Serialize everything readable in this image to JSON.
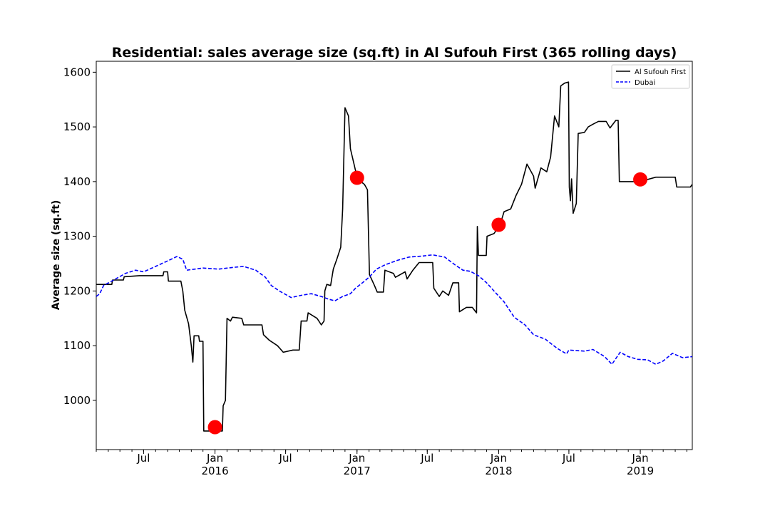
{
  "chart_data": {
    "type": "line",
    "title": "Residential: sales average size (sq.ft) in Al Sufouh First (365 rolling days)",
    "xlabel": "",
    "ylabel": "Average size (sq.ft)",
    "xlim": [
      "2015-03-01",
      "2019-05-15"
    ],
    "ylim": [
      910,
      1620
    ],
    "y_ticks": [
      1000,
      1100,
      1200,
      1300,
      1400,
      1500,
      1600
    ],
    "x_ticks": [
      {
        "date": "2015-07-01",
        "label": "Jul",
        "year": ""
      },
      {
        "date": "2016-01-01",
        "label": "Jan",
        "year": "2016"
      },
      {
        "date": "2016-07-01",
        "label": "Jul",
        "year": ""
      },
      {
        "date": "2017-01-01",
        "label": "Jan",
        "year": "2017"
      },
      {
        "date": "2017-07-01",
        "label": "Jul",
        "year": ""
      },
      {
        "date": "2018-01-01",
        "label": "Jan",
        "year": "2018"
      },
      {
        "date": "2018-07-01",
        "label": "Jul",
        "year": ""
      },
      {
        "date": "2019-01-01",
        "label": "Jan",
        "year": "2019"
      }
    ],
    "grid": false,
    "legend_position": "top-right",
    "series": [
      {
        "name": "Al Sufouh First",
        "color": "#000000",
        "style": "solid",
        "points": [
          [
            "2015-03-01",
            1212
          ],
          [
            "2015-04-10",
            1212
          ],
          [
            "2015-04-12",
            1220
          ],
          [
            "2015-05-10",
            1220
          ],
          [
            "2015-05-12",
            1226
          ],
          [
            "2015-06-20",
            1228
          ],
          [
            "2015-08-20",
            1228
          ],
          [
            "2015-08-22",
            1235
          ],
          [
            "2015-09-01",
            1235
          ],
          [
            "2015-09-03",
            1218
          ],
          [
            "2015-10-05",
            1218
          ],
          [
            "2015-10-10",
            1200
          ],
          [
            "2015-10-15",
            1165
          ],
          [
            "2015-10-25",
            1140
          ],
          [
            "2015-11-01",
            1100
          ],
          [
            "2015-11-05",
            1070
          ],
          [
            "2015-11-08",
            1118
          ],
          [
            "2015-11-20",
            1118
          ],
          [
            "2015-11-22",
            1108
          ],
          [
            "2015-12-01",
            1108
          ],
          [
            "2015-12-03",
            944
          ],
          [
            "2016-01-20",
            944
          ],
          [
            "2016-01-22",
            990
          ],
          [
            "2016-01-28",
            1000
          ],
          [
            "2016-02-01",
            1150
          ],
          [
            "2016-02-10",
            1145
          ],
          [
            "2016-02-15",
            1152
          ],
          [
            "2016-03-10",
            1150
          ],
          [
            "2016-03-15",
            1138
          ],
          [
            "2016-05-01",
            1138
          ],
          [
            "2016-05-05",
            1120
          ],
          [
            "2016-05-20",
            1110
          ],
          [
            "2016-06-10",
            1100
          ],
          [
            "2016-06-25",
            1088
          ],
          [
            "2016-07-20",
            1092
          ],
          [
            "2016-08-05",
            1092
          ],
          [
            "2016-08-10",
            1145
          ],
          [
            "2016-08-25",
            1145
          ],
          [
            "2016-08-28",
            1160
          ],
          [
            "2016-09-20",
            1150
          ],
          [
            "2016-10-01",
            1138
          ],
          [
            "2016-10-08",
            1145
          ],
          [
            "2016-10-10",
            1200
          ],
          [
            "2016-10-15",
            1212
          ],
          [
            "2016-10-25",
            1210
          ],
          [
            "2016-11-01",
            1240
          ],
          [
            "2016-11-10",
            1258
          ],
          [
            "2016-11-20",
            1280
          ],
          [
            "2016-11-25",
            1350
          ],
          [
            "2016-12-01",
            1535
          ],
          [
            "2016-12-10",
            1520
          ],
          [
            "2016-12-15",
            1460
          ],
          [
            "2016-12-25",
            1430
          ],
          [
            "2017-01-02",
            1405
          ],
          [
            "2017-01-20",
            1395
          ],
          [
            "2017-01-28",
            1385
          ],
          [
            "2017-02-02",
            1230
          ],
          [
            "2017-02-15",
            1210
          ],
          [
            "2017-02-22",
            1198
          ],
          [
            "2017-03-10",
            1198
          ],
          [
            "2017-03-14",
            1238
          ],
          [
            "2017-04-05",
            1232
          ],
          [
            "2017-04-10",
            1225
          ],
          [
            "2017-05-05",
            1235
          ],
          [
            "2017-05-10",
            1222
          ],
          [
            "2017-05-25",
            1238
          ],
          [
            "2017-06-10",
            1252
          ],
          [
            "2017-06-20",
            1252
          ],
          [
            "2017-07-15",
            1252
          ],
          [
            "2017-07-18",
            1205
          ],
          [
            "2017-08-01",
            1190
          ],
          [
            "2017-08-10",
            1200
          ],
          [
            "2017-08-25",
            1192
          ],
          [
            "2017-09-05",
            1215
          ],
          [
            "2017-09-20",
            1215
          ],
          [
            "2017-09-22",
            1162
          ],
          [
            "2017-10-10",
            1170
          ],
          [
            "2017-10-25",
            1170
          ],
          [
            "2017-11-05",
            1160
          ],
          [
            "2017-11-07",
            1318
          ],
          [
            "2017-11-10",
            1265
          ],
          [
            "2017-11-30",
            1265
          ],
          [
            "2017-12-02",
            1300
          ],
          [
            "2017-12-20",
            1305
          ],
          [
            "2018-01-05",
            1322
          ],
          [
            "2018-01-15",
            1345
          ],
          [
            "2018-02-01",
            1350
          ],
          [
            "2018-02-15",
            1375
          ],
          [
            "2018-03-01",
            1395
          ],
          [
            "2018-03-15",
            1432
          ],
          [
            "2018-04-01",
            1410
          ],
          [
            "2018-04-05",
            1388
          ],
          [
            "2018-04-20",
            1425
          ],
          [
            "2018-05-05",
            1418
          ],
          [
            "2018-05-15",
            1445
          ],
          [
            "2018-05-25",
            1520
          ],
          [
            "2018-06-05",
            1500
          ],
          [
            "2018-06-10",
            1575
          ],
          [
            "2018-06-20",
            1580
          ],
          [
            "2018-06-30",
            1582
          ],
          [
            "2018-07-02",
            1390
          ],
          [
            "2018-07-05",
            1365
          ],
          [
            "2018-07-08",
            1405
          ],
          [
            "2018-07-12",
            1342
          ],
          [
            "2018-07-20",
            1360
          ],
          [
            "2018-07-25",
            1488
          ],
          [
            "2018-08-10",
            1490
          ],
          [
            "2018-08-20",
            1500
          ],
          [
            "2018-09-01",
            1505
          ],
          [
            "2018-09-15",
            1510
          ],
          [
            "2018-10-05",
            1510
          ],
          [
            "2018-10-15",
            1498
          ],
          [
            "2018-10-30",
            1512
          ],
          [
            "2018-11-05",
            1512
          ],
          [
            "2018-11-08",
            1400
          ],
          [
            "2018-12-15",
            1400
          ],
          [
            "2019-01-15",
            1403
          ],
          [
            "2019-02-10",
            1408
          ],
          [
            "2019-04-01",
            1408
          ],
          [
            "2019-04-05",
            1390
          ],
          [
            "2019-05-10",
            1390
          ],
          [
            "2019-05-15",
            1395
          ]
        ]
      },
      {
        "name": "Dubai",
        "color": "#0000ff",
        "style": "dashed",
        "points": [
          [
            "2015-03-01",
            1190
          ],
          [
            "2015-03-10",
            1195
          ],
          [
            "2015-03-20",
            1210
          ],
          [
            "2015-04-15",
            1220
          ],
          [
            "2015-05-15",
            1232
          ],
          [
            "2015-06-10",
            1238
          ],
          [
            "2015-07-01",
            1235
          ],
          [
            "2015-08-01",
            1245
          ],
          [
            "2015-09-01",
            1255
          ],
          [
            "2015-09-25",
            1263
          ],
          [
            "2015-10-10",
            1258
          ],
          [
            "2015-10-20",
            1238
          ],
          [
            "2015-12-01",
            1242
          ],
          [
            "2016-01-10",
            1240
          ],
          [
            "2016-02-15",
            1243
          ],
          [
            "2016-03-15",
            1245
          ],
          [
            "2016-04-15",
            1238
          ],
          [
            "2016-05-10",
            1225
          ],
          [
            "2016-05-25",
            1210
          ],
          [
            "2016-06-15",
            1200
          ],
          [
            "2016-07-15",
            1188
          ],
          [
            "2016-08-10",
            1192
          ],
          [
            "2016-09-05",
            1195
          ],
          [
            "2016-10-01",
            1190
          ],
          [
            "2016-10-20",
            1185
          ],
          [
            "2016-11-05",
            1182
          ],
          [
            "2016-11-25",
            1190
          ],
          [
            "2016-12-15",
            1195
          ],
          [
            "2016-12-28",
            1205
          ],
          [
            "2017-01-15",
            1215
          ],
          [
            "2017-02-01",
            1225
          ],
          [
            "2017-02-20",
            1240
          ],
          [
            "2017-03-15",
            1248
          ],
          [
            "2017-04-15",
            1256
          ],
          [
            "2017-05-15",
            1262
          ],
          [
            "2017-06-20",
            1264
          ],
          [
            "2017-07-15",
            1266
          ],
          [
            "2017-08-15",
            1262
          ],
          [
            "2017-09-10",
            1248
          ],
          [
            "2017-10-01",
            1238
          ],
          [
            "2017-10-20",
            1236
          ],
          [
            "2017-11-10",
            1228
          ],
          [
            "2017-12-01",
            1215
          ],
          [
            "2017-12-20",
            1200
          ],
          [
            "2018-01-15",
            1180
          ],
          [
            "2018-02-10",
            1152
          ],
          [
            "2018-03-10",
            1138
          ],
          [
            "2018-04-01",
            1120
          ],
          [
            "2018-05-01",
            1112
          ],
          [
            "2018-06-01",
            1095
          ],
          [
            "2018-06-25",
            1085
          ],
          [
            "2018-07-01",
            1092
          ],
          [
            "2018-08-10",
            1090
          ],
          [
            "2018-09-01",
            1093
          ],
          [
            "2018-10-01",
            1080
          ],
          [
            "2018-10-20",
            1066
          ],
          [
            "2018-11-10",
            1088
          ],
          [
            "2018-12-01",
            1080
          ],
          [
            "2018-12-25",
            1075
          ],
          [
            "2019-01-20",
            1074
          ],
          [
            "2019-02-10",
            1066
          ],
          [
            "2019-03-01",
            1072
          ],
          [
            "2019-03-25",
            1086
          ],
          [
            "2019-04-20",
            1078
          ],
          [
            "2019-05-15",
            1080
          ]
        ]
      }
    ],
    "markers": {
      "color": "#ff0000",
      "points": [
        [
          "2016-01-01",
          951
        ],
        [
          "2017-01-01",
          1407
        ],
        [
          "2018-01-01",
          1321
        ],
        [
          "2019-01-01",
          1404
        ]
      ]
    }
  }
}
